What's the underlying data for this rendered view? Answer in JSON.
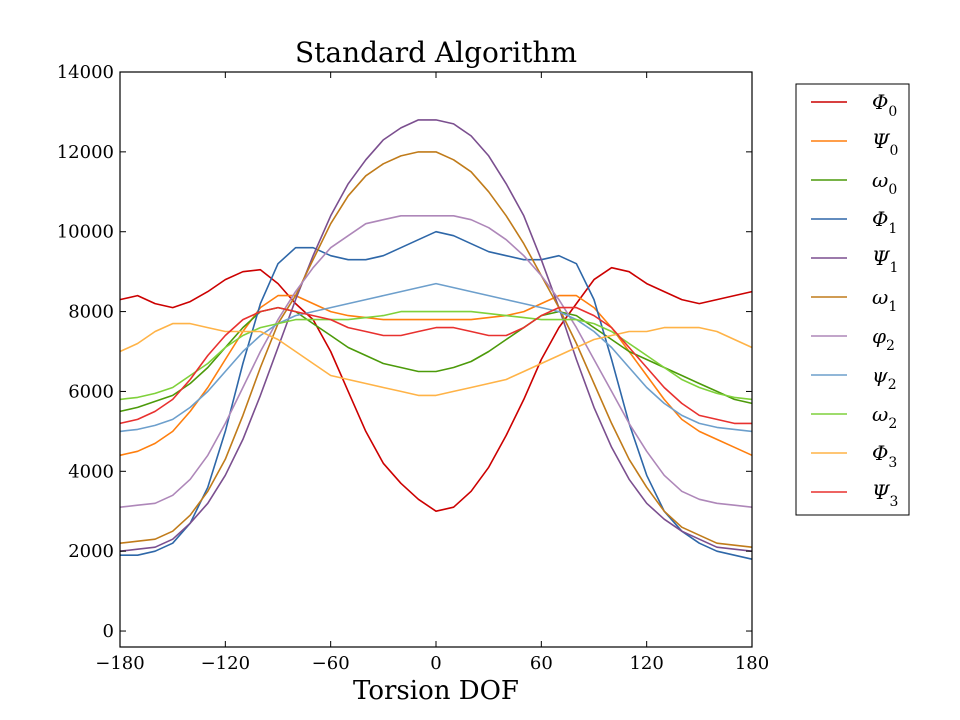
{
  "chart_data": {
    "type": "line",
    "title": "Standard Algorithm",
    "xlabel": "Torsion DOF",
    "ylabel": "",
    "xlim": [
      -180,
      180
    ],
    "ylim": [
      -400,
      14000
    ],
    "xticks": [
      -180,
      -120,
      -60,
      0,
      60,
      120,
      180
    ],
    "yticks": [
      0,
      2000,
      4000,
      6000,
      8000,
      10000,
      12000,
      14000
    ],
    "xtick_labels": [
      "−180",
      "−120",
      "−60",
      "0",
      "60",
      "120",
      "180"
    ],
    "ytick_labels": [
      "0",
      "2000",
      "4000",
      "6000",
      "8000",
      "10000",
      "12000",
      "14000"
    ],
    "grid": false,
    "legend_position": "outside-right",
    "x": [
      -180,
      -170,
      -160,
      -150,
      -140,
      -130,
      -120,
      -110,
      -100,
      -90,
      -80,
      -70,
      -60,
      -50,
      -40,
      -30,
      -20,
      -10,
      0,
      10,
      20,
      30,
      40,
      50,
      60,
      70,
      80,
      90,
      100,
      110,
      120,
      130,
      140,
      150,
      160,
      170,
      180
    ],
    "series": [
      {
        "name": "Φ",
        "sub": "0",
        "color": "#cc0000",
        "values": [
          8300,
          8400,
          8200,
          8100,
          8250,
          8500,
          8800,
          9000,
          9050,
          8700,
          8200,
          7800,
          7000,
          6000,
          5000,
          4200,
          3700,
          3300,
          3000,
          3100,
          3500,
          4100,
          4900,
          5800,
          6800,
          7600,
          8200,
          8800,
          9100,
          9000,
          8700,
          8500,
          8300,
          8200,
          8300,
          8400,
          8500
        ]
      },
      {
        "name": "Ψ",
        "sub": "0",
        "color": "#ff7f0e",
        "values": [
          4400,
          4500,
          4700,
          5000,
          5500,
          6100,
          6800,
          7500,
          8100,
          8400,
          8400,
          8200,
          8000,
          7900,
          7850,
          7800,
          7800,
          7800,
          7800,
          7800,
          7800,
          7850,
          7900,
          8000,
          8200,
          8400,
          8400,
          8100,
          7600,
          7000,
          6400,
          5800,
          5300,
          5000,
          4800,
          4600,
          4400
        ]
      },
      {
        "name": "ω",
        "sub": "0",
        "color": "#4c9a0a",
        "values": [
          5500,
          5600,
          5750,
          5900,
          6200,
          6600,
          7100,
          7600,
          8000,
          8100,
          8000,
          7700,
          7400,
          7100,
          6900,
          6700,
          6600,
          6500,
          6500,
          6600,
          6750,
          7000,
          7300,
          7600,
          7900,
          8000,
          7900,
          7600,
          7300,
          7000,
          6800,
          6600,
          6400,
          6200,
          6000,
          5800,
          5700
        ]
      },
      {
        "name": "Φ",
        "sub": "1",
        "color": "#2e67a8",
        "values": [
          1900,
          1900,
          2000,
          2200,
          2700,
          3600,
          5000,
          6700,
          8200,
          9200,
          9600,
          9600,
          9400,
          9300,
          9300,
          9400,
          9600,
          9800,
          10000,
          9900,
          9700,
          9500,
          9400,
          9300,
          9300,
          9400,
          9200,
          8300,
          6800,
          5200,
          3900,
          3000,
          2500,
          2200,
          2000,
          1900,
          1800
        ]
      },
      {
        "name": "Ψ",
        "sub": "1",
        "color": "#7b4f8f",
        "values": [
          2000,
          2050,
          2100,
          2300,
          2700,
          3200,
          3900,
          4800,
          5900,
          7100,
          8300,
          9400,
          10400,
          11200,
          11800,
          12300,
          12600,
          12800,
          12800,
          12700,
          12400,
          11900,
          11200,
          10400,
          9300,
          8100,
          6800,
          5600,
          4600,
          3800,
          3200,
          2800,
          2500,
          2300,
          2100,
          2050,
          2000
        ]
      },
      {
        "name": "ω",
        "sub": "1",
        "color": "#c07b1a",
        "values": [
          2200,
          2250,
          2300,
          2500,
          2900,
          3500,
          4300,
          5400,
          6600,
          7700,
          8400,
          9300,
          10200,
          10900,
          11400,
          11700,
          11900,
          12000,
          12000,
          11800,
          11500,
          11000,
          10400,
          9700,
          8900,
          8100,
          7200,
          6200,
          5200,
          4300,
          3600,
          3000,
          2600,
          2400,
          2200,
          2150,
          2100
        ]
      },
      {
        "name": "φ",
        "sub": "2",
        "color": "#ae87b9",
        "values": [
          3100,
          3150,
          3200,
          3400,
          3800,
          4400,
          5200,
          6100,
          7000,
          7800,
          8500,
          9100,
          9600,
          9900,
          10200,
          10300,
          10400,
          10400,
          10400,
          10400,
          10300,
          10100,
          9800,
          9400,
          8900,
          8300,
          7600,
          6800,
          6000,
          5200,
          4500,
          3900,
          3500,
          3300,
          3200,
          3150,
          3100
        ]
      },
      {
        "name": "ψ",
        "sub": "2",
        "color": "#6d9fcc",
        "values": [
          5000,
          5050,
          5150,
          5300,
          5600,
          6000,
          6500,
          7000,
          7400,
          7700,
          7900,
          8000,
          8100,
          8200,
          8300,
          8400,
          8500,
          8600,
          8700,
          8600,
          8500,
          8400,
          8300,
          8200,
          8100,
          8000,
          7800,
          7500,
          7100,
          6600,
          6100,
          5700,
          5400,
          5200,
          5100,
          5050,
          5000
        ]
      },
      {
        "name": "ω",
        "sub": "2",
        "color": "#7fd13b",
        "values": [
          5800,
          5850,
          5950,
          6100,
          6400,
          6700,
          7100,
          7400,
          7600,
          7700,
          7800,
          7800,
          7800,
          7800,
          7850,
          7900,
          8000,
          8000,
          8000,
          8000,
          8000,
          7950,
          7900,
          7850,
          7800,
          7800,
          7800,
          7700,
          7500,
          7200,
          6900,
          6600,
          6300,
          6100,
          5950,
          5850,
          5800
        ]
      },
      {
        "name": "Φ",
        "sub": "3",
        "color": "#ffb347",
        "values": [
          7000,
          7200,
          7500,
          7700,
          7700,
          7600,
          7500,
          7500,
          7500,
          7300,
          7000,
          6700,
          6400,
          6300,
          6200,
          6100,
          6000,
          5900,
          5900,
          6000,
          6100,
          6200,
          6300,
          6500,
          6700,
          6900,
          7100,
          7300,
          7400,
          7500,
          7500,
          7600,
          7600,
          7600,
          7500,
          7300,
          7100
        ]
      },
      {
        "name": "Ψ",
        "sub": "3",
        "color": "#e8312f",
        "values": [
          5200,
          5300,
          5500,
          5800,
          6300,
          6900,
          7400,
          7800,
          8000,
          8100,
          8000,
          7900,
          7800,
          7600,
          7500,
          7400,
          7400,
          7500,
          7600,
          7600,
          7500,
          7400,
          7400,
          7600,
          7900,
          8100,
          8100,
          7900,
          7600,
          7100,
          6600,
          6100,
          5700,
          5400,
          5300,
          5200,
          5200
        ]
      }
    ]
  }
}
